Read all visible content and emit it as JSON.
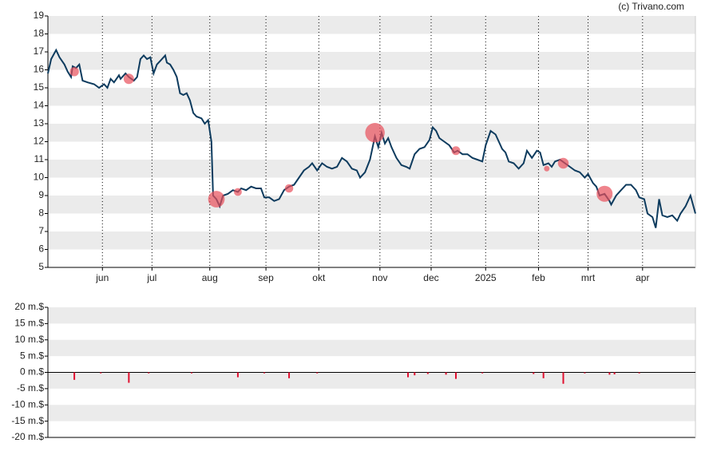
{
  "credit": "(c) Trivano.com",
  "chart_data": [
    {
      "type": "line",
      "bands": true,
      "band_color": "#ebebeb",
      "xlim": [
        0,
        392
      ],
      "xticks": [
        {
          "value": 33,
          "label": "jun"
        },
        {
          "value": 63,
          "label": "jul"
        },
        {
          "value": 98,
          "label": "aug"
        },
        {
          "value": 132,
          "label": "sep"
        },
        {
          "value": 164,
          "label": "okt"
        },
        {
          "value": 201,
          "label": "nov"
        },
        {
          "value": 232,
          "label": "dec"
        },
        {
          "value": 265,
          "label": "2025"
        },
        {
          "value": 297,
          "label": "feb"
        },
        {
          "value": 327,
          "label": "mrt"
        },
        {
          "value": 360,
          "label": "apr"
        }
      ],
      "ylim": [
        5,
        19
      ],
      "yticks": [
        5,
        6,
        7,
        8,
        9,
        10,
        11,
        12,
        13,
        14,
        15,
        16,
        17,
        18,
        19
      ],
      "x": [
        0,
        2,
        5,
        7,
        10,
        12,
        14,
        15,
        17,
        19,
        21,
        24,
        28,
        31,
        34,
        36,
        38,
        40,
        43,
        44,
        47,
        49,
        52,
        54,
        56,
        58,
        60,
        62,
        64,
        66,
        68,
        71,
        72,
        74,
        76,
        78,
        80,
        82,
        84,
        86,
        88,
        90,
        93,
        95,
        97,
        99,
        100,
        102,
        104,
        106,
        109,
        112,
        115,
        117,
        120,
        123,
        126,
        129,
        131,
        134,
        137,
        140,
        143,
        146,
        149,
        152,
        155,
        158,
        160,
        163,
        166,
        169,
        172,
        175,
        178,
        181,
        184,
        187,
        189,
        192,
        195,
        198,
        200,
        202,
        204,
        206,
        208,
        211,
        214,
        217,
        219,
        222,
        225,
        228,
        231,
        233,
        235,
        237,
        240,
        243,
        246,
        248,
        251,
        254,
        257,
        260,
        263,
        265,
        268,
        271,
        273,
        275,
        277,
        279,
        282,
        285,
        288,
        290,
        293,
        296,
        298,
        300,
        303,
        305,
        307,
        310,
        313,
        316,
        319,
        322,
        325,
        327,
        330,
        332,
        334,
        337,
        340,
        341,
        344,
        347,
        350,
        353,
        356,
        358,
        361,
        363,
        366,
        368,
        370,
        372,
        375,
        378,
        381,
        383,
        386,
        389,
        392
      ],
      "series": [
        {
          "color": "#0d3b5e",
          "values": [
            15.8,
            16.6,
            17.1,
            16.7,
            16.3,
            15.9,
            15.6,
            16.2,
            16.1,
            16.3,
            15.4,
            15.3,
            15.2,
            15.0,
            15.2,
            15.0,
            15.5,
            15.3,
            15.7,
            15.5,
            15.8,
            15.6,
            15.4,
            15.6,
            16.6,
            16.8,
            16.6,
            16.7,
            15.8,
            16.3,
            16.5,
            16.8,
            16.4,
            16.3,
            16.0,
            15.6,
            14.7,
            14.6,
            14.7,
            14.3,
            13.6,
            13.4,
            13.3,
            13.0,
            13.2,
            12.0,
            9.0,
            8.8,
            8.4,
            9.0,
            9.1,
            9.3,
            9.2,
            9.4,
            9.3,
            9.5,
            9.4,
            9.4,
            8.9,
            8.9,
            8.7,
            8.8,
            9.3,
            9.5,
            9.6,
            10.0,
            10.4,
            10.6,
            10.8,
            10.4,
            10.8,
            10.6,
            10.5,
            10.6,
            11.1,
            10.9,
            10.5,
            10.4,
            10.0,
            10.3,
            11.0,
            12.3,
            11.7,
            12.5,
            11.9,
            12.2,
            11.7,
            11.1,
            10.7,
            10.6,
            10.5,
            11.3,
            11.6,
            11.7,
            12.1,
            12.8,
            12.6,
            12.2,
            12.0,
            11.8,
            11.4,
            11.5,
            11.3,
            11.3,
            11.1,
            11.0,
            10.9,
            11.8,
            12.6,
            12.4,
            12.0,
            11.6,
            11.4,
            10.9,
            10.8,
            10.5,
            10.8,
            11.5,
            11.1,
            11.5,
            11.4,
            10.7,
            10.8,
            10.6,
            10.9,
            11.0,
            10.8,
            10.6,
            10.4,
            10.3,
            10.0,
            10.2,
            9.7,
            9.5,
            9.0,
            9.1,
            8.7,
            8.5,
            9.0,
            9.3,
            9.6,
            9.6,
            9.3,
            8.9,
            8.8,
            8.0,
            7.8,
            7.2,
            8.8,
            7.9,
            7.8,
            7.9,
            7.6,
            8.0,
            8.4,
            9.0,
            8.0
          ]
        }
      ],
      "bubbles": {
        "color": "#e8505b",
        "x": [
          16,
          49,
          102,
          115,
          146,
          198,
          247,
          302,
          312,
          337
        ],
        "y": [
          15.9,
          15.5,
          8.8,
          9.2,
          9.4,
          12.5,
          11.5,
          10.5,
          10.8,
          9.1
        ],
        "size": [
          2.3,
          3.2,
          10,
          1.5,
          1.8,
          14.7,
          2,
          0.5,
          3.5,
          9.3
        ]
      }
    },
    {
      "type": "bar",
      "bands": true,
      "band_color": "#ebebeb",
      "color": "#e0102f",
      "xlim": [
        0,
        392
      ],
      "ylim": [
        -20,
        20
      ],
      "yticks": [
        {
          "value": -20,
          "label": "-20 m.$"
        },
        {
          "value": -15,
          "label": "-15 m.$"
        },
        {
          "value": -10,
          "label": "-10 m.$"
        },
        {
          "value": -5,
          "label": "-5 m.$"
        },
        {
          "value": 0,
          "label": "0 m.$"
        },
        {
          "value": 5,
          "label": "5 m.$"
        },
        {
          "value": 10,
          "label": "10 m.$"
        },
        {
          "value": 15,
          "label": "15 m.$"
        },
        {
          "value": 20,
          "label": "20 m.$"
        }
      ],
      "x": [
        16,
        32,
        49,
        61,
        87,
        115,
        131,
        146,
        163,
        218,
        222,
        230,
        241,
        247,
        263,
        294,
        300,
        312,
        325,
        340,
        343,
        358
      ],
      "values": [
        -2.3,
        -0.3,
        -3.2,
        -0.3,
        -0.3,
        -1.5,
        -0.3,
        -1.8,
        -0.3,
        -1.5,
        -0.9,
        -0.5,
        -0.7,
        -2,
        -0.3,
        -0.5,
        -1.8,
        -3.5,
        -0.3,
        -0.7,
        -0.6,
        -0.3
      ]
    }
  ]
}
